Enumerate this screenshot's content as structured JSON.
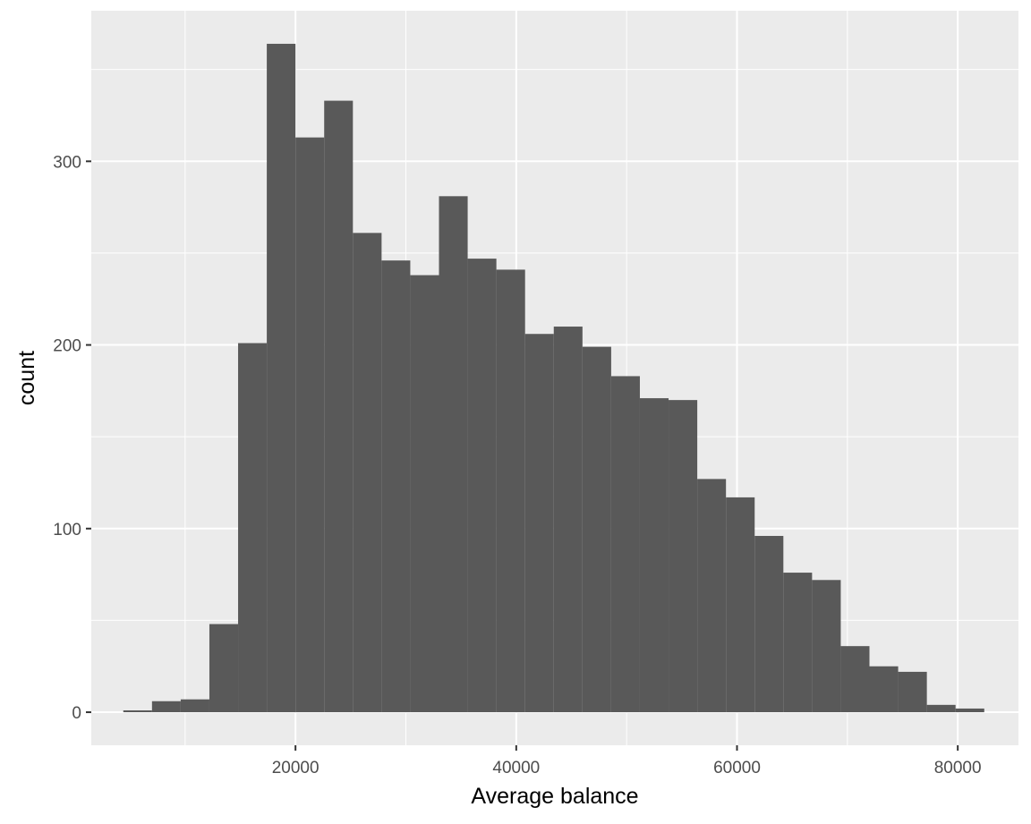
{
  "chart_data": {
    "type": "bar",
    "variant": "histogram",
    "title": "",
    "xlabel": "Average balance",
    "ylabel": "count",
    "xlim": [
      1500,
      85500
    ],
    "ylim": [
      -18,
      382
    ],
    "x_ticks": [
      20000,
      40000,
      60000,
      80000
    ],
    "x_minor_ticks": [
      10000,
      30000,
      50000,
      70000
    ],
    "y_ticks": [
      0,
      100,
      200,
      300
    ],
    "y_minor_ticks": [
      50,
      150,
      250,
      350
    ],
    "x_tick_labels": [
      "20000",
      "40000",
      "60000",
      "80000"
    ],
    "y_tick_labels": [
      "0",
      "100",
      "200",
      "300"
    ],
    "grid": true,
    "colors": {
      "panel_background": "#ebebeb",
      "grid": "#ffffff",
      "bar_fill": "#595959",
      "tick_text": "#4d4d4d"
    },
    "bin_width": 2600,
    "bin_start": 4400,
    "series": [
      {
        "values": [
          1,
          6,
          7,
          48,
          201,
          364,
          313,
          333,
          261,
          246,
          238,
          281,
          247,
          241,
          206,
          210,
          199,
          183,
          171,
          170,
          127,
          117,
          96,
          76,
          72,
          36,
          25,
          22,
          4,
          2
        ]
      }
    ]
  }
}
